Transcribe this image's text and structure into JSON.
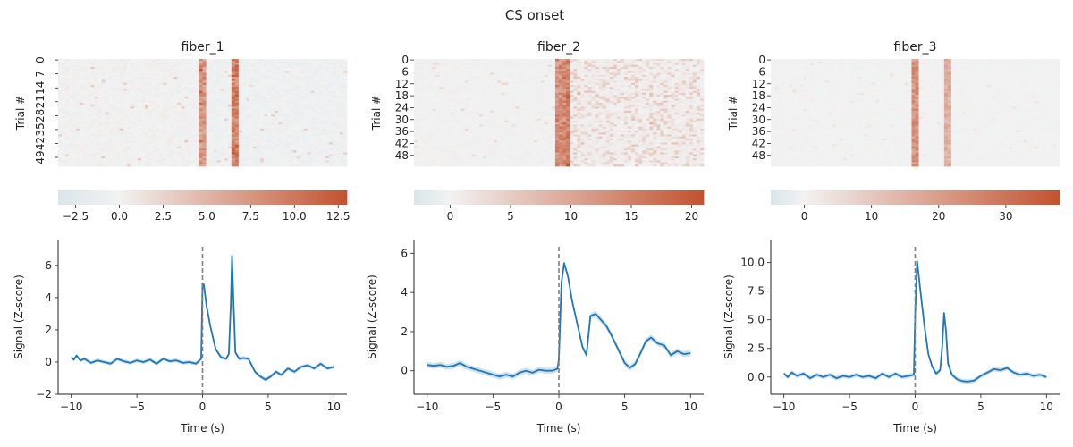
{
  "figure": {
    "title": "CS onset"
  },
  "colors": {
    "cold": "#dae6ea",
    "neutral": "#f2f2f2",
    "hot": "#c3522f",
    "line": "#1f77b4",
    "band": "#a6c8e0",
    "zero_line": "#808080",
    "axis": "#222222"
  },
  "chart_data": [
    {
      "type": "heatmap",
      "panel": "fiber_1 heatmap",
      "title": "fiber_1",
      "ylabel": "Trial #",
      "n_trials": 54,
      "x_time_range_s": [
        -10,
        10
      ],
      "y_tick_labels": [
        "0",
        "7",
        "14",
        "21",
        "28",
        "35",
        "42",
        "49"
      ],
      "colorbar": {
        "range": [
          -3.5,
          13
        ],
        "ticks": [
          -2.5,
          0.0,
          2.5,
          5.0,
          7.5,
          10.0,
          12.5
        ],
        "tick_labels": [
          "−2.5",
          "0.0",
          "2.5",
          "5.0",
          "7.5",
          "10.0",
          "12.5"
        ]
      },
      "events_s": [
        {
          "t": 0.0,
          "width": 0.3,
          "value": 9.5
        },
        {
          "t": 2.2,
          "width": 0.3,
          "value": 12.5
        }
      ],
      "post_event_tail": {
        "value": -1.5
      }
    },
    {
      "type": "heatmap",
      "panel": "fiber_2 heatmap",
      "title": "fiber_2",
      "ylabel": "Trial #",
      "n_trials": 54,
      "x_time_range_s": [
        -10,
        10
      ],
      "y_tick_labels": [
        "0",
        "6",
        "12",
        "18",
        "24",
        "30",
        "36",
        "42",
        "48"
      ],
      "colorbar": {
        "range": [
          -3,
          21
        ],
        "ticks": [
          0,
          5,
          10,
          15,
          20
        ],
        "tick_labels": [
          "0",
          "5",
          "10",
          "15",
          "20"
        ]
      },
      "events_s": [
        {
          "t": 0.15,
          "width": 0.5,
          "value": 17
        }
      ],
      "post_event_tail": {
        "value": 6
      }
    },
    {
      "type": "heatmap",
      "panel": "fiber_3 heatmap",
      "title": "fiber_3",
      "ylabel": "Trial #",
      "n_trials": 54,
      "x_time_range_s": [
        -10,
        10
      ],
      "y_tick_labels": [
        "0",
        "6",
        "12",
        "18",
        "24",
        "30",
        "36",
        "42",
        "48"
      ],
      "colorbar": {
        "range": [
          -5,
          38
        ],
        "ticks": [
          0,
          10,
          20,
          30
        ],
        "tick_labels": [
          "0",
          "10",
          "20",
          "30"
        ]
      },
      "events_s": [
        {
          "t": 0.05,
          "width": 0.25,
          "value": 28
        },
        {
          "t": 2.25,
          "width": 0.2,
          "value": 20
        }
      ],
      "post_event_tail": {
        "value": 0
      }
    },
    {
      "type": "line",
      "panel": "fiber_1 average trace",
      "xlabel": "Time (s)",
      "ylabel": "Signal (Z-score)",
      "xlim": [
        -11,
        11
      ],
      "ylim": [
        -2,
        7.6
      ],
      "x_ticks": [
        -10,
        -5,
        0,
        5,
        10
      ],
      "x_tick_labels": [
        "−10",
        "−5",
        "0",
        "5",
        "10"
      ],
      "y_ticks": [
        -2,
        0,
        2,
        4,
        6
      ],
      "y_tick_labels": [
        "−2",
        "0",
        "2",
        "4",
        "6"
      ],
      "event_line_x": 0,
      "x": [
        -10,
        -9.8,
        -9.6,
        -9.3,
        -9,
        -8.5,
        -8,
        -7.5,
        -7,
        -6.5,
        -6,
        -5.5,
        -5,
        -4.5,
        -4,
        -3.5,
        -3,
        -2.5,
        -2,
        -1.5,
        -1,
        -0.5,
        -0.1,
        0,
        0.1,
        0.3,
        0.6,
        1.0,
        1.4,
        1.8,
        2.0,
        2.15,
        2.25,
        2.35,
        2.5,
        2.8,
        3.1,
        3.5,
        4.0,
        4.4,
        4.8,
        5.2,
        5.6,
        6,
        6.5,
        7,
        7.5,
        8,
        8.5,
        9,
        9.5,
        10
      ],
      "y": [
        0.3,
        0.15,
        0.4,
        0.1,
        0.2,
        -0.05,
        0.1,
        0.0,
        -0.1,
        0.2,
        0.05,
        -0.05,
        0.1,
        0.0,
        0.15,
        -0.1,
        0.2,
        0.05,
        0.1,
        -0.05,
        0.0,
        -0.1,
        0.2,
        4.9,
        4.8,
        3.5,
        2.2,
        0.8,
        0.3,
        0.2,
        0.5,
        3.5,
        6.6,
        4.0,
        0.6,
        0.2,
        0.25,
        0.2,
        -0.6,
        -0.9,
        -1.1,
        -0.9,
        -0.6,
        -0.8,
        -0.4,
        -0.6,
        -0.3,
        -0.2,
        -0.4,
        -0.1,
        -0.4,
        -0.3
      ],
      "band": 0.12
    },
    {
      "type": "line",
      "panel": "fiber_2 average trace",
      "xlabel": "Time (s)",
      "ylabel": "Signal (Z-score)",
      "xlim": [
        -11,
        11
      ],
      "ylim": [
        -1.2,
        6.7
      ],
      "x_ticks": [
        -10,
        -5,
        0,
        5,
        10
      ],
      "x_tick_labels": [
        "−10",
        "−5",
        "0",
        "5",
        "10"
      ],
      "y_ticks": [
        0,
        2,
        4,
        6
      ],
      "y_tick_labels": [
        "0",
        "2",
        "4",
        "6"
      ],
      "event_line_x": 0,
      "x": [
        -10,
        -9.5,
        -9,
        -8.5,
        -8,
        -7.5,
        -7,
        -6.5,
        -6,
        -5.5,
        -5,
        -4.5,
        -4,
        -3.5,
        -3,
        -2.5,
        -2,
        -1.5,
        -1,
        -0.5,
        -0.1,
        0,
        0.2,
        0.4,
        0.7,
        1.0,
        1.4,
        1.8,
        2.1,
        2.4,
        2.8,
        3.2,
        3.6,
        4.0,
        4.5,
        5.0,
        5.4,
        5.8,
        6.2,
        6.6,
        7.0,
        7.5,
        8.0,
        8.5,
        9.0,
        9.5,
        10
      ],
      "y": [
        0.3,
        0.25,
        0.3,
        0.2,
        0.25,
        0.4,
        0.2,
        0.1,
        0.0,
        -0.1,
        -0.2,
        -0.3,
        -0.2,
        -0.3,
        -0.1,
        0.0,
        -0.1,
        0.05,
        0.0,
        0.0,
        0.1,
        0.6,
        4.5,
        5.5,
        4.8,
        3.6,
        2.4,
        1.2,
        0.8,
        2.8,
        2.9,
        2.6,
        2.3,
        1.8,
        1.1,
        0.4,
        0.15,
        0.35,
        0.9,
        1.5,
        1.7,
        1.4,
        1.3,
        0.8,
        1.0,
        0.85,
        0.9
      ],
      "band": 0.15
    },
    {
      "type": "line",
      "panel": "fiber_3 average trace",
      "xlabel": "Time (s)",
      "ylabel": "Signal (Z-score)",
      "xlim": [
        -11,
        11
      ],
      "ylim": [
        -1.5,
        12
      ],
      "x_ticks": [
        -10,
        -5,
        0,
        5,
        10
      ],
      "x_tick_labels": [
        "−10",
        "−5",
        "0",
        "5",
        "10"
      ],
      "y_ticks": [
        0,
        2.5,
        5,
        7.5,
        10
      ],
      "y_tick_labels": [
        "0.0",
        "2.5",
        "5.0",
        "7.5",
        "10.0"
      ],
      "event_line_x": 0,
      "x": [
        -10,
        -9.7,
        -9.4,
        -9,
        -8.5,
        -8,
        -7.5,
        -7,
        -6.5,
        -6,
        -5.5,
        -5,
        -4.5,
        -4,
        -3.5,
        -3,
        -2.5,
        -2,
        -1.5,
        -1,
        -0.5,
        -0.1,
        0,
        0.15,
        0.4,
        0.7,
        1.0,
        1.3,
        1.6,
        1.9,
        2.05,
        2.2,
        2.35,
        2.5,
        2.8,
        3.2,
        3.6,
        4.0,
        4.5,
        5,
        5.5,
        6,
        6.5,
        7,
        7.5,
        8,
        8.5,
        9,
        9.5,
        10
      ],
      "y": [
        0.3,
        0.0,
        0.4,
        0.1,
        0.3,
        -0.1,
        0.2,
        0.0,
        0.2,
        -0.1,
        0.1,
        0.0,
        0.2,
        0.0,
        0.1,
        -0.1,
        0.3,
        0.0,
        0.3,
        0.0,
        0.1,
        0.2,
        5.5,
        10.1,
        7.5,
        4.5,
        2.0,
        0.9,
        0.3,
        0.6,
        2.5,
        5.6,
        4.0,
        1.2,
        0.2,
        -0.2,
        -0.35,
        -0.4,
        -0.3,
        0.1,
        0.4,
        0.7,
        0.6,
        0.8,
        0.4,
        0.2,
        0.3,
        0.1,
        0.2,
        0.0
      ],
      "band": 0.2
    }
  ]
}
